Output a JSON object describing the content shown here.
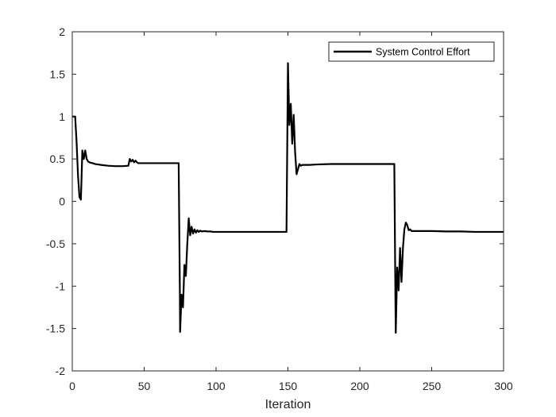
{
  "chart_data": {
    "type": "line",
    "title": "",
    "xlabel": "Iteration",
    "ylabel": "",
    "xlim": [
      0,
      300
    ],
    "ylim": [
      -2,
      2
    ],
    "x_ticks": [
      0,
      50,
      100,
      150,
      200,
      250,
      300
    ],
    "y_ticks": [
      -2,
      -1.5,
      -1,
      -0.5,
      0,
      0.5,
      1,
      1.5,
      2
    ],
    "x_tick_labels": [
      "0",
      "50",
      "100",
      "150",
      "200",
      "250",
      "300"
    ],
    "y_tick_labels": [
      "-2",
      "-1.5",
      "-1",
      "-0.5",
      "0",
      "0.5",
      "1",
      "1.5",
      "2"
    ],
    "grid": false,
    "legend_position": "top-right",
    "series": [
      {
        "name": "System Control Effort",
        "color": "#000000",
        "x": [
          0,
          1,
          2,
          3,
          4,
          5,
          6,
          7,
          8,
          9,
          10,
          11,
          12,
          14,
          16,
          18,
          20,
          25,
          30,
          35,
          39,
          40,
          41,
          42,
          43,
          44,
          45,
          46,
          47,
          48,
          50,
          55,
          60,
          65,
          70,
          74,
          74.8,
          75,
          76,
          77,
          78,
          79,
          80,
          81,
          82,
          83,
          84,
          85,
          86,
          87,
          88,
          89,
          90,
          92,
          94,
          96,
          98,
          100,
          110,
          120,
          130,
          140,
          149,
          149.8,
          150,
          151,
          152,
          153,
          154,
          155,
          156,
          157,
          158,
          159,
          160,
          162,
          165,
          170,
          180,
          190,
          200,
          210,
          220,
          224,
          224.8,
          225,
          226,
          227,
          228,
          229,
          230,
          231,
          232,
          233,
          234,
          235,
          236,
          238,
          240,
          250,
          260,
          270,
          280,
          290,
          300
        ],
        "values": [
          1,
          1,
          1,
          0.7,
          0.3,
          0.05,
          0.02,
          0.6,
          0.5,
          0.6,
          0.5,
          0.47,
          0.46,
          0.45,
          0.44,
          0.435,
          0.43,
          0.42,
          0.415,
          0.415,
          0.42,
          0.5,
          0.47,
          0.49,
          0.46,
          0.48,
          0.46,
          0.45,
          0.45,
          0.45,
          0.45,
          0.45,
          0.45,
          0.45,
          0.45,
          0.45,
          -1.0,
          -1.54,
          -1.1,
          -1.25,
          -0.75,
          -0.88,
          -0.5,
          -0.2,
          -0.4,
          -0.3,
          -0.38,
          -0.33,
          -0.37,
          -0.34,
          -0.36,
          -0.345,
          -0.355,
          -0.35,
          -0.355,
          -0.355,
          -0.36,
          -0.36,
          -0.36,
          -0.36,
          -0.36,
          -0.36,
          -0.36,
          1.2,
          1.63,
          0.9,
          1.15,
          0.68,
          1.02,
          0.58,
          0.32,
          0.38,
          0.44,
          0.42,
          0.43,
          0.43,
          0.43,
          0.435,
          0.44,
          0.44,
          0.44,
          0.44,
          0.44,
          0.44,
          -1.2,
          -1.55,
          -0.78,
          -1.05,
          -0.55,
          -0.95,
          -0.55,
          -0.33,
          -0.25,
          -0.28,
          -0.34,
          -0.33,
          -0.35,
          -0.35,
          -0.35,
          -0.35,
          -0.355,
          -0.355,
          -0.36,
          -0.36,
          -0.36
        ]
      }
    ]
  }
}
